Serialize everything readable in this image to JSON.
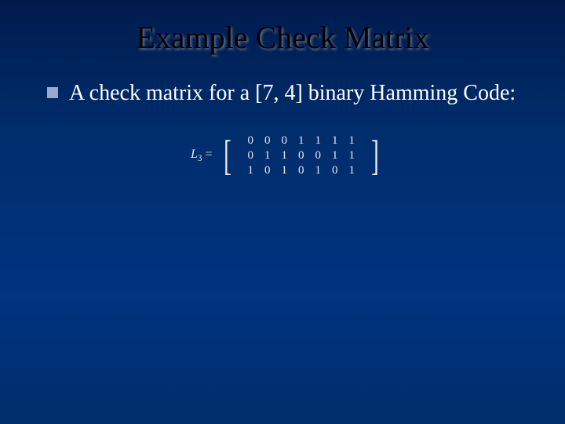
{
  "title": {
    "text": "Example Check Matrix",
    "fontsize": 40,
    "color": "#000000"
  },
  "body": {
    "bullet_color": "#9aa9c9",
    "bullet_size": 14,
    "text": "A check matrix for a [7, 4] binary Hamming Code:",
    "fontsize": 28,
    "color": "#ffffff"
  },
  "matrix": {
    "label_var": "L",
    "label_sub": "3",
    "equals": "=",
    "label_fontsize": 16,
    "cell_fontsize": 15,
    "cell_hpad": 7,
    "cell_vpad": 1,
    "bracket_fontsize": 54,
    "rows": [
      [
        "0",
        "0",
        "0",
        "1",
        "1",
        "1",
        "1"
      ],
      [
        "0",
        "1",
        "1",
        "0",
        "0",
        "1",
        "1"
      ],
      [
        "1",
        "0",
        "1",
        "0",
        "1",
        "0",
        "1"
      ]
    ]
  },
  "background": {
    "from": "#001a4d",
    "to": "#003380"
  }
}
